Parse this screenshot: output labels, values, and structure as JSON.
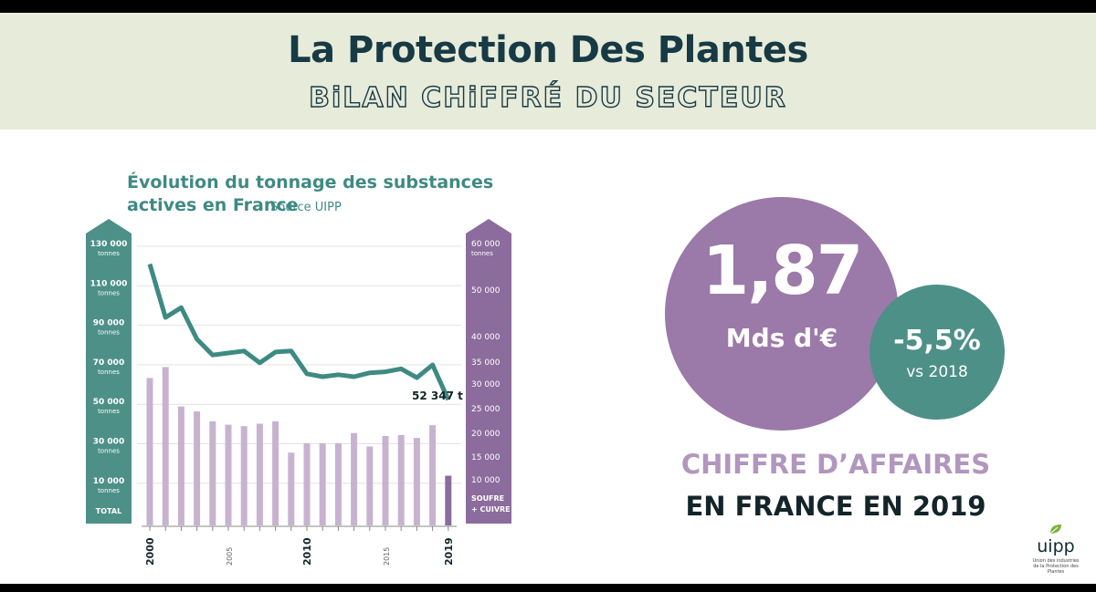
{
  "header": {
    "title": "La Protection Des Plantes",
    "subtitle": "BiLAN CHiFFRÉ DU SECTEUR"
  },
  "colors": {
    "header_bg": "#e7ebd9",
    "dark_teal_text": "#173a45",
    "teal": "#4d9088",
    "purple": "#9b79a9",
    "light_purple": "#b196bd",
    "bar_color": "#c7b3d0",
    "line_color": "#3e8a83"
  },
  "chart": {
    "title_line1": "Évolution du tonnage des substances",
    "title_line2": "actives en France",
    "source": "Source UIPP",
    "left_axis_ticks": [
      {
        "value": "130 000",
        "unit": "tonnes"
      },
      {
        "value": "110 000",
        "unit": "tonnes"
      },
      {
        "value": "90 000",
        "unit": "tonnes"
      },
      {
        "value": "70 000",
        "unit": "tonnes"
      },
      {
        "value": "50 000",
        "unit": "tonnes"
      },
      {
        "value": "30 000",
        "unit": "tonnes"
      },
      {
        "value": "10 000",
        "unit": "tonnes"
      }
    ],
    "left_axis_label": "TOTAL",
    "right_axis_ticks": [
      "60 000 tonnes",
      "50 000",
      "40 000",
      "35 000",
      "30 000",
      "25 000",
      "20 000",
      "15 000",
      "10 000"
    ],
    "right_axis_label_line1": "SOUFRE",
    "right_axis_label_line2": "+ CUIVRE",
    "x_tick_labels": [
      "2000",
      "2005",
      "2010",
      "2015",
      "2019"
    ],
    "end_annotation": "52 347 t"
  },
  "chart_data": {
    "type": "line",
    "title": "Évolution du tonnage des substances actives en France",
    "source": "Source UIPP",
    "x": [
      2000,
      2001,
      2002,
      2003,
      2004,
      2005,
      2006,
      2007,
      2008,
      2009,
      2010,
      2011,
      2012,
      2013,
      2014,
      2015,
      2016,
      2017,
      2018,
      2019
    ],
    "series": [
      {
        "name": "TOTAL",
        "axis": "left",
        "type": "line",
        "values": [
          121000,
          94000,
          99000,
          83000,
          75000,
          76000,
          77000,
          71000,
          76500,
          77000,
          65500,
          64000,
          65000,
          64000,
          66000,
          66500,
          68000,
          63500,
          70000,
          52347
        ]
      },
      {
        "name": "SOUFRE + CUIVRE",
        "axis": "right",
        "type": "bar",
        "values": [
          32000,
          34500,
          26000,
          25000,
          23000,
          22300,
          22000,
          22500,
          23000,
          16500,
          18500,
          18500,
          18500,
          20600,
          17800,
          20000,
          20200,
          19600,
          22200,
          11500
        ]
      }
    ],
    "left_axis": {
      "label": "TOTAL",
      "unit": "tonnes",
      "ticks": [
        130000,
        110000,
        90000,
        70000,
        50000,
        30000,
        10000
      ],
      "ylim": [
        0,
        130000
      ]
    },
    "right_axis": {
      "label": "SOUFRE + CUIVRE",
      "unit": "tonnes",
      "ticks": [
        60000,
        50000,
        40000,
        35000,
        30000,
        25000,
        20000,
        15000,
        10000
      ]
    },
    "annotations": [
      {
        "x": 2019,
        "text": "52 347 t"
      }
    ],
    "grid": true
  },
  "kpi": {
    "value": "1,87",
    "unit": "Mds d'€",
    "change_value": "-5,5%",
    "change_label": "vs 2018",
    "caption_line1": "CHIFFRE D’AFFAIRES",
    "caption_line2": "EN FRANCE EN 2019"
  },
  "logo": {
    "text": "uipp",
    "tagline": "Union des industries de la Protection des Plantes"
  }
}
